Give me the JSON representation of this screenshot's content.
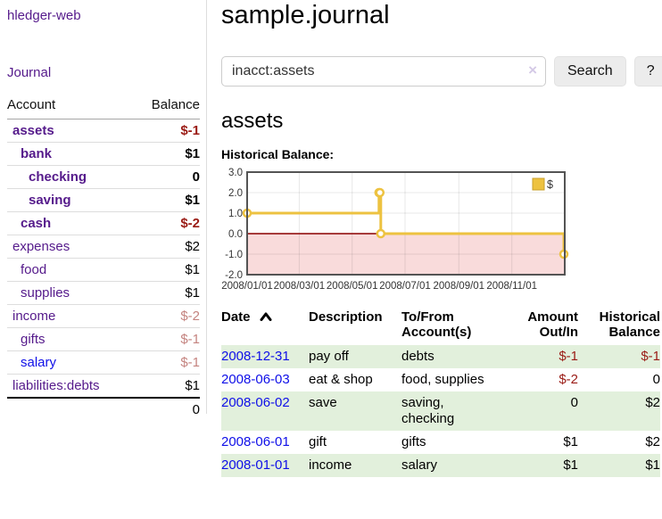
{
  "colors": {
    "link_visited": "#551a8b",
    "link_unvisited": "#0f0fe8",
    "negative_strong": "#9a1b15",
    "negative_dim": "#c4837f",
    "row_shade_green": "#e2f0dc",
    "chart_series_gold": "#edc240"
  },
  "sidebar": {
    "brand": "hledger-web",
    "nav": [
      {
        "label": "Journal"
      }
    ],
    "accounts_table": {
      "headers": {
        "account": "Account",
        "balance": "Balance"
      },
      "rows": [
        {
          "name": "assets",
          "depth": 0,
          "in_focus": true,
          "balance": "$-1"
        },
        {
          "name": "bank",
          "depth": 1,
          "in_focus": true,
          "balance": "$1"
        },
        {
          "name": "checking",
          "depth": 2,
          "in_focus": true,
          "balance": "0"
        },
        {
          "name": "saving",
          "depth": 2,
          "in_focus": true,
          "balance": "$1"
        },
        {
          "name": "cash",
          "depth": 1,
          "in_focus": true,
          "balance": "$-2"
        },
        {
          "name": "expenses",
          "depth": 0,
          "in_focus": false,
          "balance": "$2"
        },
        {
          "name": "food",
          "depth": 1,
          "in_focus": false,
          "balance": "$1"
        },
        {
          "name": "supplies",
          "depth": 1,
          "in_focus": false,
          "balance": "$1"
        },
        {
          "name": "income",
          "depth": 0,
          "in_focus": false,
          "balance": "$-2"
        },
        {
          "name": "gifts",
          "depth": 1,
          "in_focus": false,
          "balance": "$-1"
        },
        {
          "name": "salary",
          "depth": 1,
          "in_focus": false,
          "balance": "$-1",
          "link_visited": false
        },
        {
          "name": "liabilities:debts",
          "depth": 0,
          "in_focus": false,
          "balance": "$1"
        }
      ],
      "total": "0"
    }
  },
  "main": {
    "title": "sample.journal",
    "search": {
      "value": "inacct:assets",
      "clear_icon": "×",
      "button_label": "Search",
      "help_label": "?"
    },
    "account_heading": "assets",
    "chart_label": "Historical Balance:",
    "register": {
      "columns": [
        {
          "label": "Date",
          "align": "left",
          "sorted": "ascending"
        },
        {
          "label": "Description",
          "align": "left"
        },
        {
          "label": "To/From\nAccount(s)",
          "align": "left"
        },
        {
          "label": "Amount\nOut/In",
          "align": "right"
        },
        {
          "label": "Historical\nBalance",
          "align": "right"
        }
      ],
      "rows": [
        {
          "date": "2008-12-31",
          "description": "pay off",
          "accounts": "debts",
          "amount": "$-1",
          "balance": "$-1"
        },
        {
          "date": "2008-06-03",
          "description": "eat & shop",
          "accounts": "food, supplies",
          "amount": "$-2",
          "balance": "0"
        },
        {
          "date": "2008-06-02",
          "description": "save",
          "accounts": "saving,\nchecking",
          "amount": "0",
          "balance": "$2"
        },
        {
          "date": "2008-06-01",
          "description": "gift",
          "accounts": "gifts",
          "amount": "$1",
          "balance": "$2"
        },
        {
          "date": "2008-01-01",
          "description": "income",
          "accounts": "salary",
          "amount": "$1",
          "balance": "$1"
        }
      ]
    }
  },
  "chart_data": {
    "type": "line",
    "title": "Historical Balance",
    "step": true,
    "series": [
      {
        "name": "$",
        "color": "#edc240",
        "points": [
          [
            "2008-01-01",
            1
          ],
          [
            "2008-06-01",
            2
          ],
          [
            "2008-06-02",
            2
          ],
          [
            "2008-06-03",
            0
          ],
          [
            "2008-12-31",
            -1
          ]
        ]
      }
    ],
    "xlim": [
      "2008-01-01",
      "2009-01-01"
    ],
    "ylim": [
      -2,
      3
    ],
    "yticks": [
      "3.0",
      "2.0",
      "1.0",
      "0.0",
      "-1.0",
      "-2.0"
    ],
    "xticks": [
      {
        "date": "2008-01-01",
        "label": "2008/01/01"
      },
      {
        "date": "2008-03-01",
        "label": "2008/03/01"
      },
      {
        "date": "2008-05-01",
        "label": "2008/05/01"
      },
      {
        "date": "2008-07-01",
        "label": "2008/07/01"
      },
      {
        "date": "2008-09-01",
        "label": "2008/09/01"
      },
      {
        "date": "2008-11-01",
        "label": "2008/11/01"
      }
    ],
    "grid": true,
    "legend": {
      "position": "top-right",
      "entries": [
        {
          "label": "$",
          "color": "#edc240"
        }
      ]
    },
    "negative_region_color": "#f9dbdb",
    "zero_line_color": "#8b0000"
  }
}
